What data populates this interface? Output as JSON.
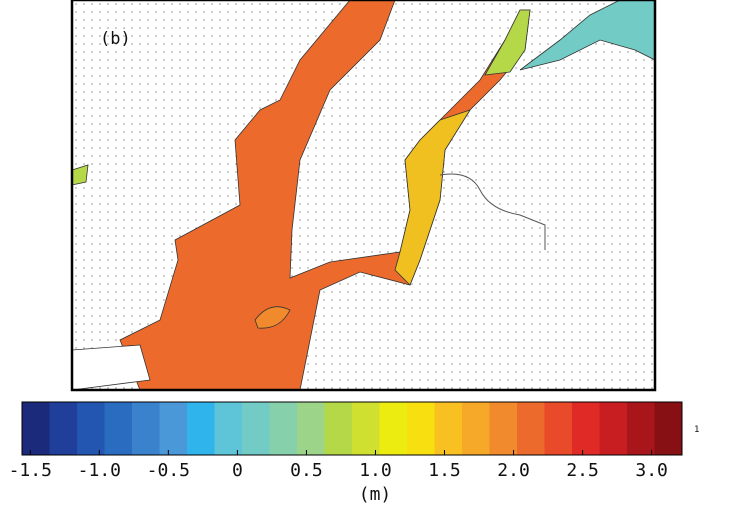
{
  "panel_label": "(b)",
  "colorbar": {
    "lim": [
      -1.56,
      3.22
    ],
    "ticks": [
      -1.5,
      {
        "value": -1,
        "label": "-1.0"
      },
      -0.5,
      0,
      0.5,
      {
        "value": 1,
        "label": "1.0"
      },
      1.5,
      {
        "value": 2,
        "label": "2.0"
      },
      2.5,
      {
        "value": 3,
        "label": "3.0"
      }
    ],
    "unit": "(m)",
    "edge_label": "1",
    "colors": [
      "#1b2a7a",
      "#1f3f9a",
      "#2356b0",
      "#2a6cc0",
      "#3a82cc",
      "#4a98d8",
      "#2fb4ec",
      "#5ec4d8",
      "#72cbc4",
      "#86d0ac",
      "#9cd48a",
      "#b4d848",
      "#cfe030",
      "#ecec10",
      "#f8e010",
      "#f8c020",
      "#f6a828",
      "#f08a2c",
      "#ec6a2c",
      "#e84a2a",
      "#e02a26",
      "#c81e22",
      "#a8161c",
      "#861014"
    ]
  }
}
